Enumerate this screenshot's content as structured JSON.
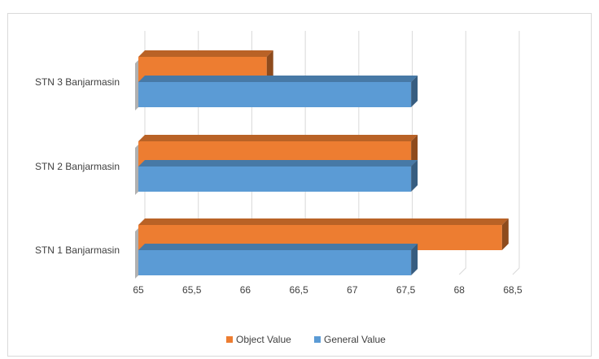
{
  "chart_data": {
    "type": "bar",
    "orientation": "horizontal",
    "style": "3d-clustered-bar",
    "categories": [
      "STN 1 Banjarmasin",
      "STN 2 Banjarmasin",
      "STN 3 Banjarmasin"
    ],
    "series": [
      {
        "name": "Object Value",
        "color": "#ed7d31",
        "values": [
          68.4,
          67.55,
          66.2
        ]
      },
      {
        "name": "General Value",
        "color": "#5b9bd5",
        "values": [
          67.55,
          67.55,
          67.55
        ]
      }
    ],
    "xlim": [
      65,
      68.5
    ],
    "xticks": [
      "65",
      "65,5",
      "66",
      "66,5",
      "67",
      "67,5",
      "68",
      "68,5"
    ],
    "grid": true,
    "legend_position": "bottom",
    "title": "",
    "xlabel": "",
    "ylabel": ""
  }
}
